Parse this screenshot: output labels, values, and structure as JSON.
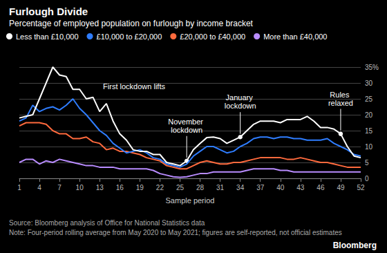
{
  "chart_data": {
    "type": "line",
    "title": "Furlough Divide",
    "subtitle": "Percentage of employed population on furlough by income bracket",
    "source": "Source: Bloomberg analysis of Office for National Statistics data",
    "note": "Note: Four-period rolling average from May 2020 to May 2021; figures are self-reported, not official estimates",
    "brand": "Bloomberg",
    "xlabel": "Sample period",
    "x": [
      1,
      2,
      3,
      4,
      5,
      6,
      7,
      8,
      9,
      10,
      11,
      12,
      13,
      14,
      15,
      16,
      17,
      18,
      19,
      20,
      21,
      22,
      23,
      24,
      25,
      26,
      27,
      28,
      29,
      30,
      31,
      32,
      33,
      34,
      35,
      36,
      37,
      38,
      39,
      40,
      41,
      42,
      43,
      44,
      45,
      46,
      47,
      48,
      49,
      50,
      51,
      52
    ],
    "xlim": [
      1,
      52
    ],
    "xticks": [
      1,
      4,
      7,
      10,
      13,
      16,
      19,
      22,
      25,
      28,
      31,
      34,
      37,
      40,
      43,
      46,
      49,
      52
    ],
    "ylim": [
      0,
      35
    ],
    "yticks": [
      0,
      5,
      10,
      15,
      20,
      25,
      30,
      {
        "value": 35,
        "label": "35%"
      }
    ],
    "grid": true,
    "legend": "top-left",
    "series": [
      {
        "name": "Less than £10,000",
        "color": "#ffffff",
        "values": [
          19,
          19.5,
          20,
          25,
          30,
          35,
          32.5,
          32,
          28,
          28,
          25,
          25.5,
          21,
          23.5,
          18,
          14,
          12,
          9,
          8.5,
          8.5,
          7.5,
          7.5,
          5,
          4.5,
          4,
          5.5,
          9,
          11,
          12.8,
          13,
          12.5,
          11,
          12,
          13,
          15,
          17,
          18,
          18,
          18,
          17.5,
          18.5,
          18.5,
          18.5,
          19.5,
          18,
          16,
          16,
          15.5,
          14,
          10,
          7,
          6.5
        ]
      },
      {
        "name": "£10,000 to £20,000",
        "color": "#2f7dff",
        "values": [
          18,
          19,
          23,
          21,
          22,
          22.5,
          21.5,
          23,
          25,
          22,
          20,
          17.5,
          15,
          13.5,
          11,
          9.5,
          8,
          8.5,
          9,
          8,
          6.5,
          6,
          4.5,
          4,
          3.5,
          4.5,
          7,
          8.5,
          10,
          10,
          9,
          8,
          8.5,
          10,
          11,
          12.5,
          13,
          13,
          12.5,
          13,
          13,
          12.5,
          12.5,
          12,
          12,
          12,
          12.5,
          11,
          10,
          9,
          7.5,
          7
        ]
      },
      {
        "name": "£20,000 to £40,000",
        "color": "#ff6a3d",
        "values": [
          16.5,
          17.5,
          17.5,
          17.5,
          17,
          15,
          14,
          14,
          12.5,
          12.5,
          13,
          11.5,
          11,
          9,
          9.5,
          8.5,
          8.5,
          8,
          7.5,
          6.5,
          6,
          5.5,
          4,
          3.5,
          3,
          3,
          4,
          5,
          5.5,
          5,
          4.5,
          4.5,
          5,
          5,
          5.5,
          6,
          6.5,
          6.5,
          6.5,
          6.5,
          6,
          6,
          6.5,
          6,
          5.5,
          5,
          5,
          4.5,
          4,
          3.5,
          3.5,
          3.5
        ]
      },
      {
        "name": "More than £40,000",
        "color": "#b98cff",
        "values": [
          5,
          6,
          6,
          4.5,
          5.5,
          5,
          6,
          5.5,
          5,
          4.5,
          4,
          4,
          3.5,
          3.5,
          3.5,
          3,
          3,
          3,
          3,
          3,
          2.5,
          1.5,
          1,
          0.5,
          0.3,
          0.5,
          1,
          1.5,
          1.5,
          2,
          2,
          2,
          2,
          2,
          2.5,
          3,
          3,
          3,
          3,
          2.5,
          2.5,
          2,
          2,
          2,
          2,
          2,
          2,
          2,
          2,
          2,
          2,
          2
        ]
      }
    ],
    "annotations": [
      {
        "text": "First lockdown lifts",
        "x": 13.5,
        "y": 29
      }
    ],
    "events": [
      {
        "text": "November lockdown",
        "x": 26
      },
      {
        "text": "January lockdown",
        "x": 34
      },
      {
        "text": "Rules relaxed",
        "x": 49
      }
    ]
  }
}
